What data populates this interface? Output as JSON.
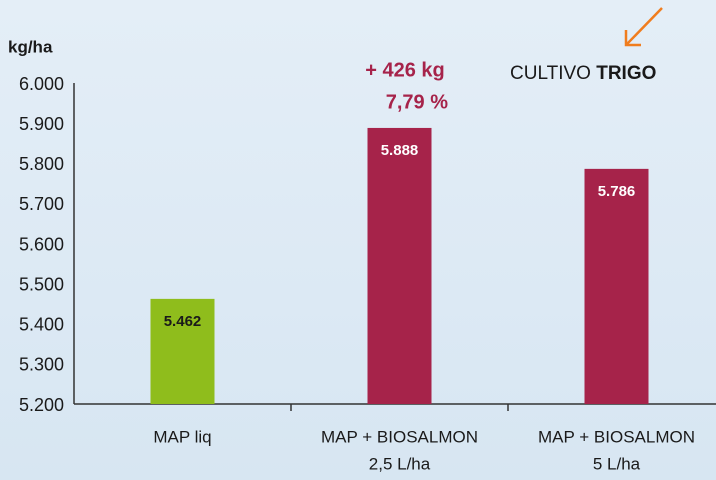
{
  "chart_data": {
    "type": "bar",
    "y_label": "kg/ha",
    "categories": [
      "MAP liq",
      [
        "MAP + BIOSALMON",
        "2,5 L/ha"
      ],
      [
        "MAP + BIOSALMON",
        "5 L/ha"
      ]
    ],
    "values": [
      5462,
      5888,
      5786
    ],
    "value_labels": [
      "5.462",
      "5.888",
      "5.786"
    ],
    "colors": [
      "#8fbd1c",
      "#a6234a",
      "#a6234a"
    ],
    "label_colors": [
      "#1a1a1a",
      "#ffffff",
      "#ffffff"
    ],
    "ylim": [
      5200,
      6000
    ],
    "yticks": [
      {
        "value": 5200,
        "label": "5.200"
      },
      {
        "value": 5300,
        "label": "5.300"
      },
      {
        "value": 5400,
        "label": "5.400"
      },
      {
        "value": 5500,
        "label": "5.500"
      },
      {
        "value": 5600,
        "label": "5.600"
      },
      {
        "value": 5700,
        "label": "5.700"
      },
      {
        "value": 5800,
        "label": "5.800"
      },
      {
        "value": 5900,
        "label": "5.900"
      },
      {
        "value": 6000,
        "label": "6.000"
      }
    ],
    "grid": false,
    "annotations": [
      "+ 426 kg",
      "7,79 %"
    ],
    "badge": {
      "text": "CULTIVO",
      "emphasis": "TRIGO"
    }
  }
}
